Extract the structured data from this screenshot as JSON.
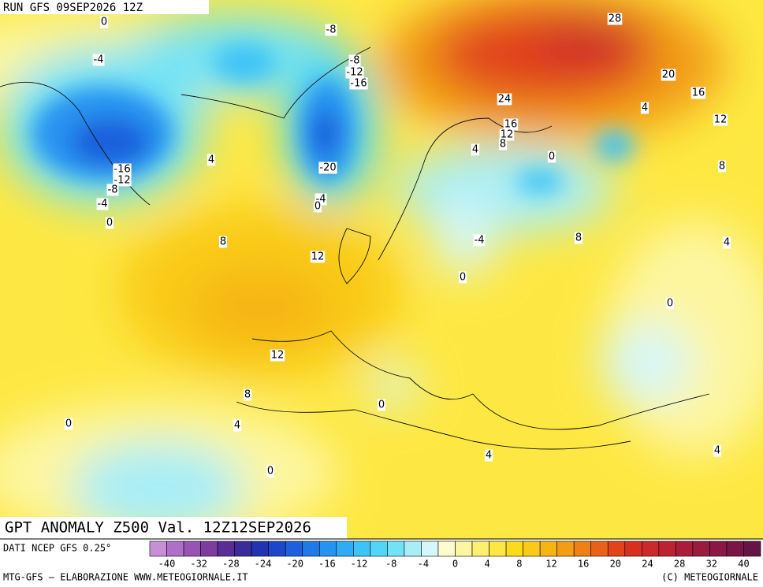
{
  "header": {
    "run": "RUN GFS 09SEP2026 12Z"
  },
  "map": {
    "title": "GPT ANOMALY Z500 Val. 12Z12SEP2026",
    "contour_labels": [
      0,
      -4,
      -8,
      -8,
      -12,
      -16,
      28,
      20,
      16,
      12,
      4,
      24,
      16,
      12,
      8,
      4,
      0,
      8,
      4,
      -16,
      -12,
      -8,
      -4,
      0,
      -20,
      -4,
      0,
      8,
      12,
      -4,
      8,
      4,
      0,
      0,
      12,
      8,
      0,
      0,
      4,
      0,
      4,
      4
    ]
  },
  "colorbar": {
    "source": "DATI NCEP GFS 0.25°",
    "colors": [
      "#c88fd6",
      "#b06fc6",
      "#9853b3",
      "#7d3c9e",
      "#5a2d96",
      "#3a2a9a",
      "#2233b0",
      "#1c47c8",
      "#1d5fdc",
      "#1f7ae8",
      "#2593f0",
      "#31abf4",
      "#3ec3f6",
      "#51d7f6",
      "#72e3f6",
      "#a7eef7",
      "#d6f7f9",
      "#fdfbd0",
      "#fdf6a0",
      "#fdf070",
      "#fde843",
      "#fbdc1d",
      "#f9cb17",
      "#f6b515",
      "#f29d15",
      "#ee8016",
      "#e86118",
      "#e1431b",
      "#d7301f",
      "#ca2a2a",
      "#bb2232",
      "#aa1c3a",
      "#9a1a40",
      "#8a1844",
      "#781646",
      "#661446"
    ],
    "ticks": [
      -40,
      -32,
      -28,
      -24,
      -20,
      -16,
      -12,
      -8,
      -4,
      0,
      4,
      8,
      12,
      16,
      20,
      24,
      28,
      32,
      40
    ]
  },
  "footer": {
    "left": "MTG-GFS – ELABORAZIONE WWW.METEOGIORNALE.IT",
    "right": "(C) METEOGIORNALE"
  }
}
